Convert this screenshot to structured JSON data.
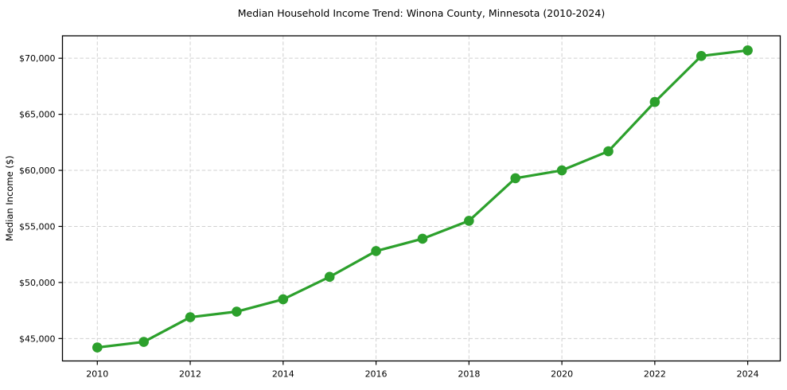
{
  "chart_data": {
    "type": "line",
    "title": "Median Household Income Trend: Winona County, Minnesota (2010-2024)",
    "xlabel": "",
    "ylabel": "Median Income ($)",
    "x": [
      2010,
      2011,
      2012,
      2013,
      2014,
      2015,
      2016,
      2017,
      2018,
      2019,
      2020,
      2021,
      2022,
      2023,
      2024
    ],
    "values": [
      44200,
      44700,
      46900,
      47400,
      48500,
      50500,
      52800,
      53900,
      55500,
      59300,
      60000,
      61700,
      66100,
      70200,
      70700
    ],
    "xlim": [
      2009.25,
      2024.7
    ],
    "ylim": [
      43000,
      72000
    ],
    "xtick_values": [
      2010,
      2012,
      2014,
      2016,
      2018,
      2020,
      2022,
      2024
    ],
    "xtick_labels": [
      "2010",
      "2012",
      "2014",
      "2016",
      "2018",
      "2020",
      "2022",
      "2024"
    ],
    "ytick_values": [
      45000,
      50000,
      55000,
      60000,
      65000,
      70000
    ],
    "ytick_labels": [
      "$45,000",
      "$50,000",
      "$55,000",
      "$60,000",
      "$65,000",
      "$70,000"
    ],
    "grid": true,
    "grid_style": "dashed",
    "legend": "none",
    "colors": {
      "line": "#2ca02c",
      "marker": "#2ca02c",
      "grid": "#d0d0d0",
      "axis": "#000000",
      "text": "#000000",
      "background": "#ffffff"
    }
  }
}
